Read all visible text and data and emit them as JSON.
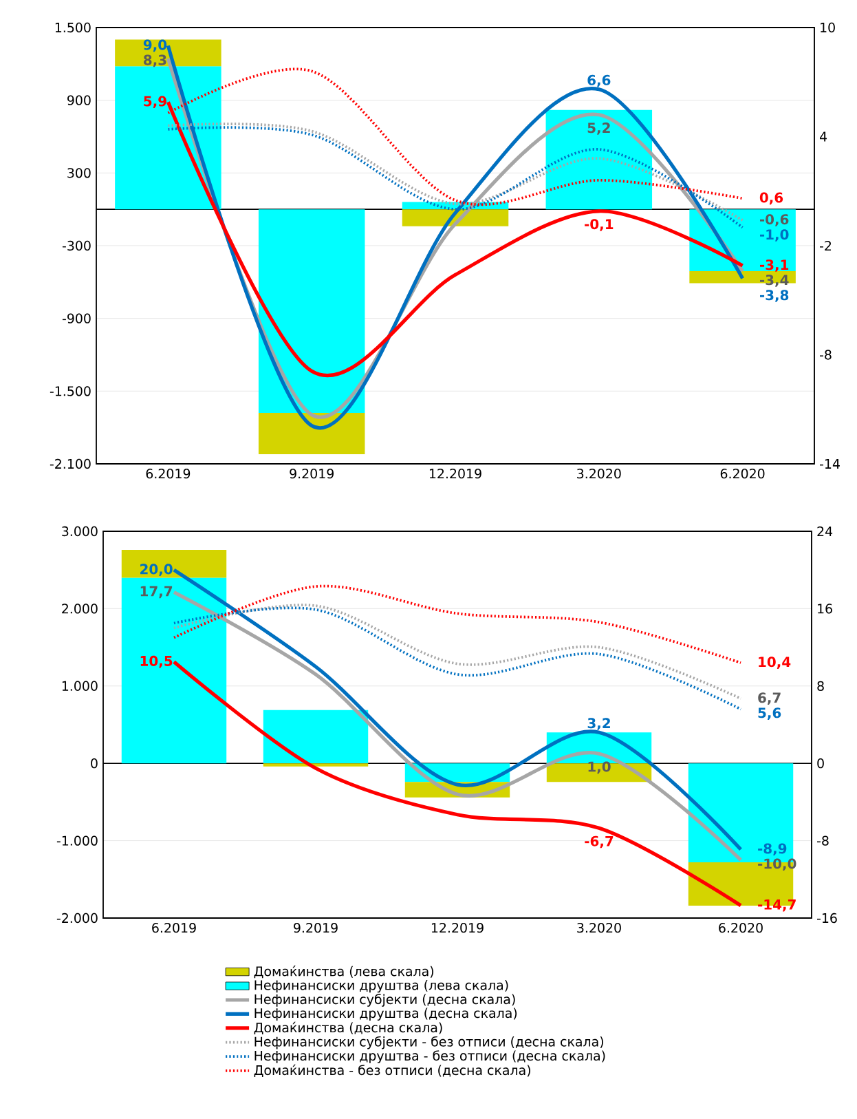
{
  "chart_data": [
    {
      "type": "bar",
      "stacked": true,
      "grid": "y",
      "categories": [
        "6.2019",
        "9.2019",
        "12.2019",
        "3.2020",
        "6.2020"
      ],
      "ylim": [
        -2100,
        1500
      ],
      "yticks": [
        {
          "value": -2100,
          "label": "-2.100"
        },
        {
          "value": -1500,
          "label": "-1.500"
        },
        -900,
        -300,
        300,
        900,
        {
          "value": 1500,
          "label": "1.500"
        }
      ],
      "y2lim": [
        -14,
        10
      ],
      "y2ticks": [
        -14,
        -8,
        -2,
        4,
        10
      ],
      "series": [
        {
          "axis": "y",
          "color": "#00ffff",
          "values": [
            1180,
            -1680,
            60,
            820,
            -510
          ]
        },
        {
          "axis": "y",
          "color": "#d4d400",
          "values": [
            220,
            -340,
            -140,
            0,
            -100
          ]
        },
        {
          "type": "line",
          "axis": "y2",
          "line_style": "solid",
          "color": "#a6a6a6",
          "values": [
            8.3,
            -11.3,
            -0.8,
            5.2,
            -3.4
          ],
          "value_labels": [
            "8,3",
            null,
            null,
            "5,2",
            "-3,4"
          ]
        },
        {
          "type": "line",
          "axis": "y2",
          "line_style": "solid",
          "color": "#0070c0",
          "values": [
            9.0,
            -11.9,
            -0.2,
            6.6,
            -3.8
          ],
          "value_labels": [
            "9,0",
            null,
            null,
            "6,6",
            "-3,8"
          ]
        },
        {
          "type": "line",
          "axis": "y2",
          "line_style": "solid",
          "color": "#ff0000",
          "values": [
            5.9,
            -8.9,
            -3.6,
            -0.1,
            -3.1
          ],
          "value_labels": [
            "5,9",
            null,
            null,
            "-0,1",
            "-3,1"
          ]
        },
        {
          "type": "line",
          "axis": "y2",
          "line_style": "dotted",
          "color": "#a6a6a6",
          "values": [
            4.6,
            4.3,
            0.3,
            2.8,
            -0.6
          ],
          "value_labels": [
            null,
            null,
            null,
            null,
            "-0,6"
          ]
        },
        {
          "type": "line",
          "axis": "y2",
          "line_style": "dotted",
          "color": "#0070c0",
          "values": [
            4.4,
            4.1,
            0.0,
            3.3,
            -1.0
          ],
          "value_labels": [
            null,
            null,
            null,
            null,
            "-1,0"
          ]
        },
        {
          "type": "line",
          "axis": "y2",
          "line_style": "dotted",
          "color": "#ff0000",
          "values": [
            5.3,
            7.6,
            0.5,
            1.6,
            0.6
          ],
          "value_labels": [
            null,
            null,
            null,
            null,
            "0,6"
          ]
        }
      ]
    },
    {
      "type": "bar",
      "stacked": true,
      "grid": "y",
      "legend": "bottom",
      "categories": [
        "6.2019",
        "9.2019",
        "12.2019",
        "3.2020",
        "6.2020"
      ],
      "ylim": [
        -2000,
        3000
      ],
      "yticks": [
        {
          "value": -2000,
          "label": "-2.000"
        },
        {
          "value": -1000,
          "label": "-1.000"
        },
        0,
        {
          "value": 1000,
          "label": "1.000"
        },
        {
          "value": 2000,
          "label": "2.000"
        },
        {
          "value": 3000,
          "label": "3.000"
        }
      ],
      "y2lim": [
        -16,
        24
      ],
      "y2ticks": [
        -16,
        -8,
        0,
        8,
        16,
        24
      ],
      "series": [
        {
          "axis": "y",
          "name": "Нефинансиски друштва (лева скала)",
          "color": "#00ffff",
          "values": [
            2400,
            690,
            -240,
            400,
            -1280
          ]
        },
        {
          "axis": "y",
          "name": "Домаќинства (лева скала)",
          "color": "#d4d400",
          "values": [
            360,
            -40,
            -200,
            -240,
            -560
          ]
        },
        {
          "type": "line",
          "axis": "y2",
          "line_style": "solid",
          "name": "Нефинансиски субјекти (десна скала)",
          "color": "#a6a6a6",
          "values": [
            17.7,
            9.2,
            -3.2,
            1.0,
            -10.0
          ],
          "value_labels": [
            "17,7",
            null,
            null,
            "1,0",
            "-10,0"
          ]
        },
        {
          "type": "line",
          "axis": "y2",
          "line_style": "solid",
          "name": "Нефинансиски друштва (десна скала)",
          "color": "#0070c0",
          "values": [
            20.0,
            10.0,
            -2.2,
            3.2,
            -8.9
          ],
          "value_labels": [
            "20,0",
            null,
            null,
            "3,2",
            "-8,9"
          ]
        },
        {
          "type": "line",
          "axis": "y2",
          "line_style": "solid",
          "name": "Домаќинства (десна скала)",
          "color": "#ff0000",
          "values": [
            10.5,
            -0.5,
            -5.3,
            -6.7,
            -14.7
          ],
          "value_labels": [
            "10,5",
            null,
            null,
            "-6,7",
            "-14,7"
          ]
        },
        {
          "type": "line",
          "axis": "y2",
          "line_style": "dotted",
          "name": "Нефинансиски субјекти - без отписи (десна скала)",
          "color": "#a6a6a6",
          "values": [
            14.0,
            16.3,
            10.3,
            12.0,
            6.7
          ],
          "value_labels": [
            null,
            null,
            null,
            null,
            "6,7"
          ]
        },
        {
          "type": "line",
          "axis": "y2",
          "line_style": "dotted",
          "name": "Нефинансиски друштва - без отписи (десна скала)",
          "color": "#0070c0",
          "values": [
            14.5,
            15.9,
            9.2,
            11.3,
            5.6
          ],
          "value_labels": [
            null,
            null,
            null,
            null,
            "5,6"
          ]
        },
        {
          "type": "line",
          "axis": "y2",
          "line_style": "dotted",
          "name": "Домаќинства - без отписи (десна скала)",
          "color": "#ff0000",
          "values": [
            13.0,
            18.3,
            15.5,
            14.6,
            10.4
          ],
          "value_labels": [
            null,
            null,
            null,
            null,
            "10,4"
          ]
        }
      ]
    }
  ]
}
